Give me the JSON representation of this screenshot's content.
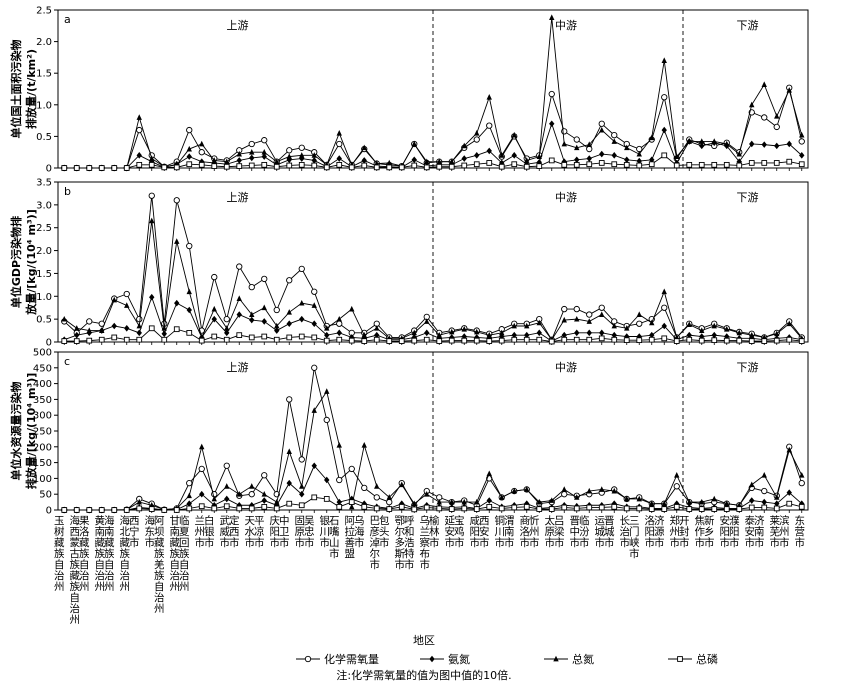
{
  "categories": [
    "玉树藏族自治州",
    "海西蒙古族藏族自治州",
    "果洛藏族自治州",
    "黄南藏族自治州",
    "海南藏族自治州",
    "海北藏族自治州",
    "西宁市",
    "海东市",
    "阿坝藏族羌族自治州",
    "甘南藏族自治州",
    "临夏回族自治州",
    "兰州市",
    "白银市",
    "武威市",
    "定西市",
    "天水市",
    "平凉市",
    "庆阳市",
    "中卫市",
    "固原市",
    "吴忠市",
    "银川市",
    "石嘴山市",
    "阿拉善盟",
    "乌海市",
    "巴彦淖尔市",
    "包头市",
    "鄂尔多斯市",
    "呼和浩特市",
    "乌兰察布市",
    "榆林市",
    "延安市",
    "宝鸡市",
    "咸阳市",
    "西安市",
    "铜川市",
    "渭南市",
    "商洛市",
    "忻州市",
    "太原市",
    "吕梁市",
    "晋中市",
    "临汾市",
    "运城市",
    "晋城市",
    "长治市",
    "三门峡市",
    "洛阳市",
    "济源市",
    "郑州市",
    "开封市",
    "焦作市",
    "新乡市",
    "安阳市",
    "濮阳市",
    "泰安市",
    "济南市",
    "莱芜市",
    "滨州市",
    "东营市"
  ],
  "regions": [
    "上游",
    "中游",
    "下游"
  ],
  "xlabel": "地区",
  "note": "注:化学需氧量的值为图中值的10倍.",
  "chart_data": [
    {
      "type": "line",
      "panel": "a",
      "ylabel_lines": [
        "单位国土面积污染物",
        "排放量/(t/km²)"
      ],
      "ylim": [
        0,
        2.5
      ],
      "yticks": [
        0,
        0.5,
        1.0,
        1.5,
        2.0,
        2.5
      ],
      "ytick_labels": [
        "0",
        "0.5",
        "1.0",
        "1.5",
        "2.0",
        "2.5"
      ],
      "series": [
        {
          "name": "化学需氧量",
          "marker": "circle",
          "values": [
            0,
            0,
            0,
            0,
            0,
            0,
            0.6,
            0.2,
            0.02,
            0.1,
            0.6,
            0.25,
            0.15,
            0.12,
            0.28,
            0.38,
            0.44,
            0.1,
            0.28,
            0.32,
            0.25,
            0.05,
            0.38,
            0.05,
            0.3,
            0.07,
            0.05,
            0.03,
            0.38,
            0.08,
            0.1,
            0.1,
            0.32,
            0.45,
            0.67,
            0.18,
            0.5,
            0.15,
            0.2,
            1.17,
            0.58,
            0.45,
            0.3,
            0.7,
            0.52,
            0.38,
            0.3,
            0.45,
            1.12,
            0.15,
            0.45,
            0.38,
            0.35,
            0.4,
            0.25,
            0.88,
            0.8,
            0.65,
            1.27,
            0.42
          ]
        },
        {
          "name": "氨氮",
          "marker": "diamond",
          "values": [
            0,
            0,
            0,
            0,
            0,
            0,
            0.2,
            0.1,
            0.01,
            0.06,
            0.18,
            0.1,
            0.08,
            0.06,
            0.12,
            0.16,
            0.18,
            0.05,
            0.13,
            0.15,
            0.12,
            0.02,
            0.15,
            0.02,
            0.12,
            0.03,
            0.02,
            0.01,
            0.13,
            0.03,
            0.05,
            0.05,
            0.15,
            0.2,
            0.27,
            0.08,
            0.2,
            0.06,
            0.09,
            0.7,
            0.1,
            0.13,
            0.15,
            0.22,
            0.2,
            0.13,
            0.11,
            0.13,
            0.6,
            0.08,
            0.42,
            0.35,
            0.4,
            0.35,
            0.1,
            0.38,
            0.37,
            0.35,
            0.38,
            0.2
          ]
        },
        {
          "name": "总氮",
          "marker": "triangle",
          "values": [
            0,
            0,
            0,
            0,
            0,
            0,
            0.8,
            0.15,
            0.02,
            0.05,
            0.3,
            0.38,
            0.12,
            0.1,
            0.22,
            0.25,
            0.25,
            0.1,
            0.18,
            0.2,
            0.2,
            0.05,
            0.55,
            0.05,
            0.32,
            0.07,
            0.08,
            0.03,
            0.38,
            0.1,
            0.1,
            0.1,
            0.35,
            0.55,
            1.12,
            0.2,
            0.52,
            0.12,
            0.18,
            2.38,
            0.38,
            0.32,
            0.37,
            0.6,
            0.42,
            0.32,
            0.22,
            0.48,
            1.7,
            0.18,
            0.42,
            0.42,
            0.42,
            0.38,
            0.22,
            1.0,
            1.32,
            0.82,
            1.23,
            0.52
          ]
        },
        {
          "name": "总磷",
          "marker": "square",
          "values": [
            0,
            0,
            0,
            0,
            0,
            0,
            0.05,
            0.05,
            0.01,
            0.01,
            0.06,
            0.05,
            0.03,
            0.02,
            0.03,
            0.04,
            0.05,
            0.02,
            0.04,
            0.05,
            0.04,
            0.01,
            0.05,
            0.01,
            0.04,
            0.01,
            0.01,
            0.01,
            0.04,
            0.01,
            0.02,
            0.02,
            0.04,
            0.06,
            0.08,
            0.02,
            0.06,
            0.02,
            0.03,
            0.12,
            0.05,
            0.05,
            0.06,
            0.08,
            0.06,
            0.05,
            0.04,
            0.06,
            0.2,
            0.04,
            0.05,
            0.05,
            0.05,
            0.05,
            0.04,
            0.08,
            0.08,
            0.08,
            0.1,
            0.06
          ]
        }
      ]
    },
    {
      "type": "line",
      "panel": "b",
      "ylabel_lines": [
        "单位GDP污染物排",
        "放量/[kg/(10⁴ m³)]"
      ],
      "ylim": [
        0,
        3.5
      ],
      "yticks": [
        0,
        0.5,
        1.0,
        1.5,
        2.0,
        2.5,
        3.0,
        3.5
      ],
      "ytick_labels": [
        "0",
        "0.5",
        "1.0",
        "1.5",
        "2.0",
        "2.5",
        "3.0",
        "3.5"
      ],
      "series": [
        {
          "name": "化学需氧量",
          "marker": "circle",
          "values": [
            0.45,
            0.2,
            0.45,
            0.4,
            0.95,
            1.05,
            0.5,
            3.2,
            0.4,
            3.1,
            2.1,
            0.25,
            1.42,
            0.5,
            1.65,
            1.2,
            1.38,
            0.7,
            1.35,
            1.6,
            1.1,
            0.35,
            0.4,
            0.2,
            0.2,
            0.4,
            0.1,
            0.1,
            0.25,
            0.55,
            0.2,
            0.25,
            0.3,
            0.25,
            0.18,
            0.28,
            0.4,
            0.4,
            0.5,
            0.05,
            0.72,
            0.72,
            0.6,
            0.75,
            0.45,
            0.35,
            0.4,
            0.5,
            0.75,
            0.1,
            0.4,
            0.3,
            0.4,
            0.3,
            0.22,
            0.18,
            0.1,
            0.2,
            0.45,
            0.1
          ]
        },
        {
          "name": "氨氮",
          "marker": "diamond",
          "values": [
            0.05,
            0.15,
            0.2,
            0.25,
            0.35,
            0.3,
            0.2,
            0.98,
            0.18,
            0.85,
            0.7,
            0.1,
            0.5,
            0.2,
            0.6,
            0.48,
            0.45,
            0.25,
            0.4,
            0.5,
            0.4,
            0.15,
            0.2,
            0.1,
            0.08,
            0.15,
            0.05,
            0.05,
            0.1,
            0.2,
            0.08,
            0.1,
            0.12,
            0.1,
            0.08,
            0.12,
            0.15,
            0.15,
            0.2,
            0.02,
            0.15,
            0.2,
            0.2,
            0.2,
            0.15,
            0.12,
            0.12,
            0.15,
            0.35,
            0.05,
            0.15,
            0.12,
            0.15,
            0.12,
            0.08,
            0.08,
            0.05,
            0.08,
            0.1,
            0.05
          ]
        },
        {
          "name": "总氮",
          "marker": "triangle",
          "values": [
            0.5,
            0.3,
            0.25,
            0.25,
            0.92,
            0.8,
            0.35,
            2.65,
            0.3,
            2.2,
            1.1,
            0.1,
            0.72,
            0.3,
            0.95,
            0.6,
            0.75,
            0.35,
            0.65,
            0.85,
            0.8,
            0.3,
            0.5,
            0.72,
            0.15,
            0.3,
            0.08,
            0.08,
            0.2,
            0.45,
            0.15,
            0.22,
            0.28,
            0.22,
            0.15,
            0.2,
            0.35,
            0.35,
            0.42,
            0.05,
            0.48,
            0.5,
            0.45,
            0.6,
            0.35,
            0.3,
            0.6,
            0.42,
            1.1,
            0.1,
            0.38,
            0.25,
            0.35,
            0.28,
            0.2,
            0.15,
            0.1,
            0.18,
            0.4,
            0.08
          ]
        },
        {
          "name": "总磷",
          "marker": "square",
          "values": [
            0.02,
            0.02,
            0.03,
            0.05,
            0.1,
            0.05,
            0.05,
            0.3,
            0.05,
            0.28,
            0.2,
            0.03,
            0.12,
            0.05,
            0.15,
            0.1,
            0.12,
            0.05,
            0.1,
            0.12,
            0.1,
            0.03,
            0.05,
            0.03,
            0.02,
            0.05,
            0.02,
            0.02,
            0.03,
            0.05,
            0.02,
            0.03,
            0.03,
            0.03,
            0.02,
            0.03,
            0.05,
            0.05,
            0.05,
            0.01,
            0.05,
            0.05,
            0.05,
            0.08,
            0.05,
            0.04,
            0.04,
            0.05,
            0.08,
            0.02,
            0.05,
            0.03,
            0.04,
            0.03,
            0.03,
            0.02,
            0.02,
            0.03,
            0.05,
            0.02
          ]
        }
      ]
    },
    {
      "type": "line",
      "panel": "c",
      "ylabel_lines": [
        "单位水资源量污染物",
        "排放量/[kg/(10⁴ m³)]"
      ],
      "ylim": [
        0,
        500
      ],
      "yticks": [
        0,
        50,
        100,
        150,
        200,
        250,
        300,
        350,
        400,
        450,
        500
      ],
      "ytick_labels": [
        "0",
        "50",
        "100",
        "150",
        "200",
        "250",
        "300",
        "350",
        "400",
        "450",
        "500"
      ],
      "series": [
        {
          "name": "化学需氧量",
          "marker": "circle",
          "values": [
            0,
            0,
            0,
            0,
            0,
            1,
            35,
            20,
            1,
            5,
            85,
            130,
            50,
            140,
            45,
            50,
            110,
            50,
            350,
            160,
            450,
            285,
            95,
            130,
            70,
            40,
            25,
            85,
            15,
            60,
            40,
            25,
            30,
            15,
            100,
            40,
            60,
            65,
            20,
            25,
            50,
            45,
            50,
            55,
            65,
            35,
            40,
            20,
            20,
            75,
            25,
            20,
            25,
            20,
            15,
            70,
            60,
            45,
            200,
            85
          ]
        },
        {
          "name": "氨氮",
          "marker": "diamond",
          "values": [
            0,
            0,
            0,
            0,
            0,
            0,
            8,
            5,
            0,
            1,
            20,
            50,
            15,
            35,
            15,
            15,
            30,
            15,
            85,
            50,
            140,
            95,
            25,
            35,
            20,
            10,
            5,
            20,
            5,
            15,
            10,
            8,
            10,
            5,
            30,
            10,
            15,
            20,
            5,
            8,
            15,
            12,
            15,
            15,
            20,
            10,
            10,
            5,
            5,
            20,
            8,
            5,
            8,
            5,
            5,
            30,
            25,
            20,
            55,
            20
          ]
        },
        {
          "name": "总氮",
          "marker": "triangle",
          "values": [
            0,
            0,
            0,
            0,
            0,
            1,
            25,
            15,
            1,
            5,
            45,
            200,
            35,
            75,
            50,
            75,
            50,
            25,
            185,
            75,
            315,
            375,
            205,
            10,
            205,
            75,
            40,
            80,
            20,
            50,
            25,
            25,
            25,
            25,
            115,
            40,
            60,
            65,
            25,
            30,
            65,
            40,
            60,
            65,
            60,
            35,
            35,
            20,
            20,
            110,
            25,
            25,
            35,
            20,
            15,
            80,
            110,
            40,
            190,
            110
          ]
        },
        {
          "name": "总磷",
          "marker": "square",
          "values": [
            0,
            0,
            0,
            0,
            0,
            0,
            5,
            3,
            0,
            0,
            5,
            12,
            5,
            12,
            5,
            5,
            10,
            5,
            20,
            15,
            40,
            35,
            10,
            25,
            10,
            5,
            3,
            10,
            2,
            8,
            5,
            3,
            5,
            3,
            10,
            5,
            8,
            10,
            3,
            3,
            8,
            5,
            8,
            8,
            10,
            5,
            5,
            3,
            3,
            10,
            3,
            3,
            3,
            3,
            3,
            8,
            8,
            5,
            20,
            10
          ]
        }
      ]
    }
  ]
}
